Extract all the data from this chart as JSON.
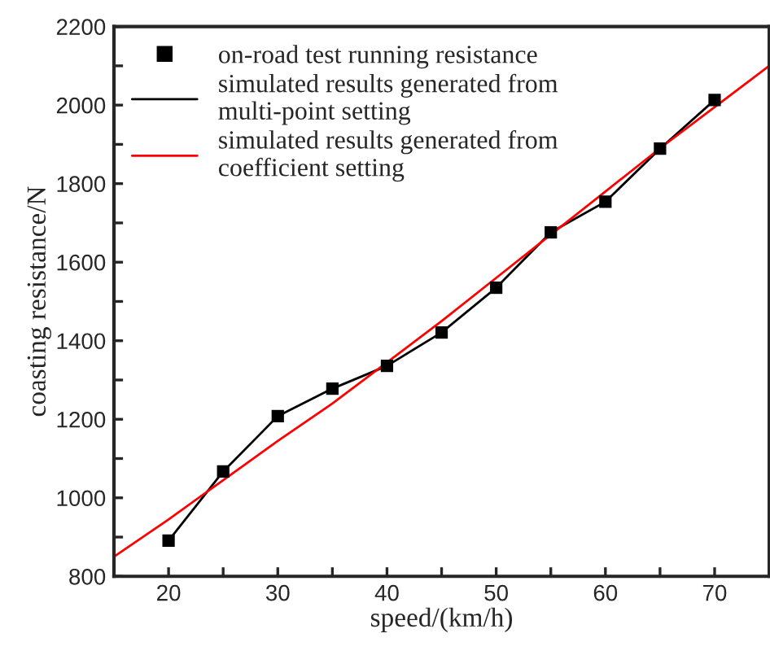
{
  "chart_data": {
    "type": "line",
    "xlabel": "speed/(km/h)",
    "ylabel": "coasting resistance/N",
    "xlim": [
      15,
      75
    ],
    "ylim": [
      800,
      2200
    ],
    "xticks": [
      {
        "value": 15,
        "label": null
      },
      20,
      {
        "value": 25,
        "label": null
      },
      30,
      {
        "value": 35,
        "label": null
      },
      40,
      {
        "value": 45,
        "label": null
      },
      50,
      {
        "value": 55,
        "label": null
      },
      60,
      {
        "value": 65,
        "label": null
      },
      70,
      {
        "value": 75,
        "label": null
      }
    ],
    "yticks": [
      800,
      {
        "value": 900,
        "label": null
      },
      1000,
      {
        "value": 1100,
        "label": null
      },
      1200,
      {
        "value": 1300,
        "label": null
      },
      1400,
      {
        "value": 1500,
        "label": null
      },
      1600,
      {
        "value": 1700,
        "label": null
      },
      1800,
      {
        "value": 1900,
        "label": null
      },
      2000,
      {
        "value": 2100,
        "label": null
      },
      2200
    ],
    "legend": "top left",
    "grid": false,
    "series": [
      {
        "name": "on-road test running resistance",
        "type": "scatter",
        "marker": "square",
        "color": "#000000",
        "x": [
          20,
          25,
          30,
          35,
          40,
          45,
          50,
          55,
          60,
          65,
          70
        ],
        "values": [
          891,
          1067,
          1208,
          1278,
          1336,
          1421,
          1535,
          1676,
          1754,
          1889,
          2013
        ]
      },
      {
        "name": "simulated results generated from multi-point setting",
        "marker": "none",
        "color": "#000000",
        "x": [
          20,
          25,
          30,
          35,
          40,
          45,
          50,
          55,
          60,
          65,
          70
        ],
        "values": [
          891,
          1067,
          1208,
          1278,
          1336,
          1421,
          1535,
          1676,
          1754,
          1889,
          2013
        ]
      },
      {
        "name": "simulated results generated from coefficient setting",
        "marker": "none",
        "color": "#ff0000",
        "x": [
          15,
          20,
          25,
          30,
          35,
          40,
          45,
          50,
          55,
          60,
          65,
          70,
          75
        ],
        "values": [
          850,
          945,
          1045,
          1145,
          1240,
          1345,
          1450,
          1560,
          1670,
          1780,
          1890,
          1995,
          2100
        ]
      }
    ]
  }
}
